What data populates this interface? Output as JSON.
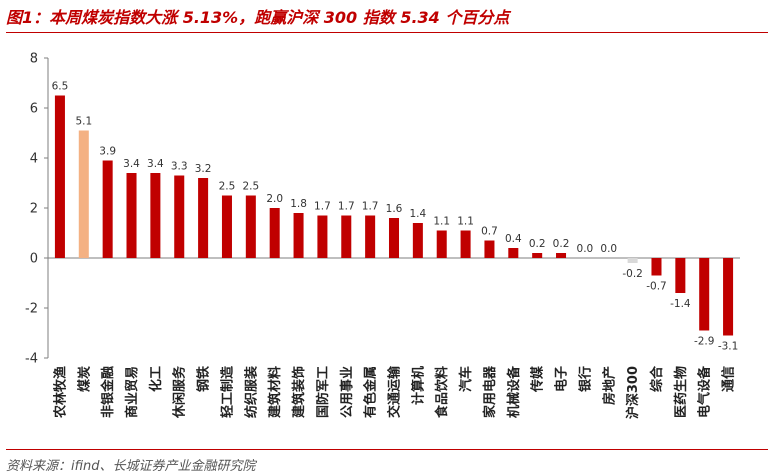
{
  "header": {
    "title": "图1：本周煤炭指数大涨 5.13%，跑赢沪深 300 指数 5.34 个百分点"
  },
  "footer": {
    "source": "资料来源：ifind、长城证券产业金融研究院"
  },
  "colors": {
    "bar": "#c00000",
    "highlight": "#f4b183",
    "benchmark": "#d9d9d9",
    "title": "#c00000"
  },
  "chart_data": {
    "type": "bar",
    "categories": [
      "农林牧渔",
      "煤炭",
      "非银金融",
      "商业贸易",
      "化工",
      "休闲服务",
      "钢铁",
      "轻工制造",
      "纺织服装",
      "建筑材料",
      "建筑装饰",
      "国防军工",
      "公用事业",
      "有色金属",
      "交通运输",
      "计算机",
      "食品饮料",
      "汽车",
      "家用电器",
      "机械设备",
      "传媒",
      "电子",
      "银行",
      "房地产",
      "沪深300",
      "综合",
      "医药生物",
      "电气设备",
      "通信"
    ],
    "values": [
      6.5,
      5.1,
      3.9,
      3.4,
      3.4,
      3.3,
      3.2,
      2.5,
      2.5,
      2.0,
      1.8,
      1.7,
      1.7,
      1.7,
      1.6,
      1.4,
      1.1,
      1.1,
      0.7,
      0.4,
      0.2,
      0.2,
      0.0,
      0.0,
      -0.2,
      -0.7,
      -1.4,
      -2.9,
      -3.1
    ],
    "value_labels": [
      "6.5",
      "5.1",
      "3.9",
      "3.4",
      "3.4",
      "3.3",
      "3.2",
      "2.5",
      "2.5",
      "2.0",
      "1.8",
      "1.7",
      "1.7",
      "1.7",
      "1.6",
      "1.4",
      "1.1",
      "1.1",
      "0.7",
      "0.4",
      "0.2",
      "0.2",
      "0.0",
      "0.0",
      "-0.2",
      "-0.7",
      "-1.4",
      "-2.9",
      "-3.1"
    ],
    "highlight_category": "煤炭",
    "benchmark_category": "沪深300",
    "ylim": [
      -4,
      8
    ],
    "yticks": [
      -4,
      -2,
      0,
      2,
      4,
      6,
      8
    ],
    "ytick_labels": [
      "-4",
      "-2",
      "0",
      "2",
      "4",
      "6",
      "8"
    ],
    "grid": false,
    "title": "",
    "xlabel": "",
    "ylabel": ""
  }
}
